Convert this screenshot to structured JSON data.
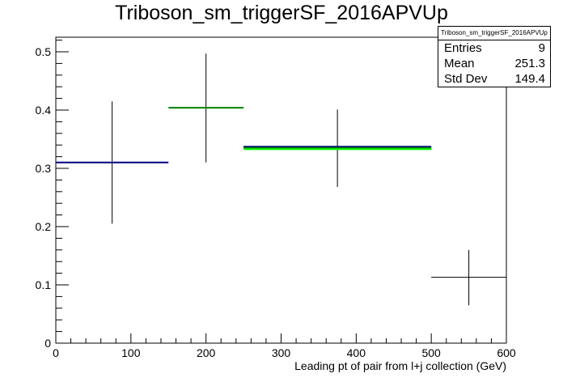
{
  "chart_data": {
    "type": "scatter",
    "title": "Triboson_sm_triggerSF_2016APVUp",
    "xlabel": "Leading pt of pair from l+j collection (GeV)",
    "ylabel": "",
    "xlim": [
      0,
      600
    ],
    "ylim": [
      0,
      0.525
    ],
    "xticks": [
      0,
      100,
      200,
      300,
      400,
      500,
      600
    ],
    "yticks": [
      0,
      0.1,
      0.2,
      0.3,
      0.4,
      0.5
    ],
    "grid": false,
    "points": [
      {
        "x_low": 0,
        "x_high": 150,
        "x": 75,
        "y": 0.31,
        "err_low": 0.205,
        "err_high": 0.415,
        "colors": [
          "#000080"
        ]
      },
      {
        "x_low": 150,
        "x_high": 250,
        "x": 200,
        "y": 0.404,
        "err_low": 0.31,
        "err_high": 0.497,
        "colors": [
          "#008000"
        ]
      },
      {
        "x_low": 250,
        "x_high": 500,
        "x": 375,
        "y": 0.335,
        "err_low": 0.268,
        "err_high": 0.401,
        "colors": [
          "#000080",
          "#008000",
          "#00ff00"
        ]
      },
      {
        "x_low": 500,
        "x_high": 600,
        "x": 550,
        "y": 0.113,
        "err_low": 0.065,
        "err_high": 0.16,
        "colors": [
          "#000000"
        ]
      }
    ],
    "stats": {
      "name": "Triboson_sm_triggerSF_2016APVUp",
      "rows": [
        {
          "label": "Entries",
          "value": "9"
        },
        {
          "label": "Mean",
          "value": "251.3"
        },
        {
          "label": "Std Dev",
          "value": "149.4"
        }
      ]
    }
  }
}
